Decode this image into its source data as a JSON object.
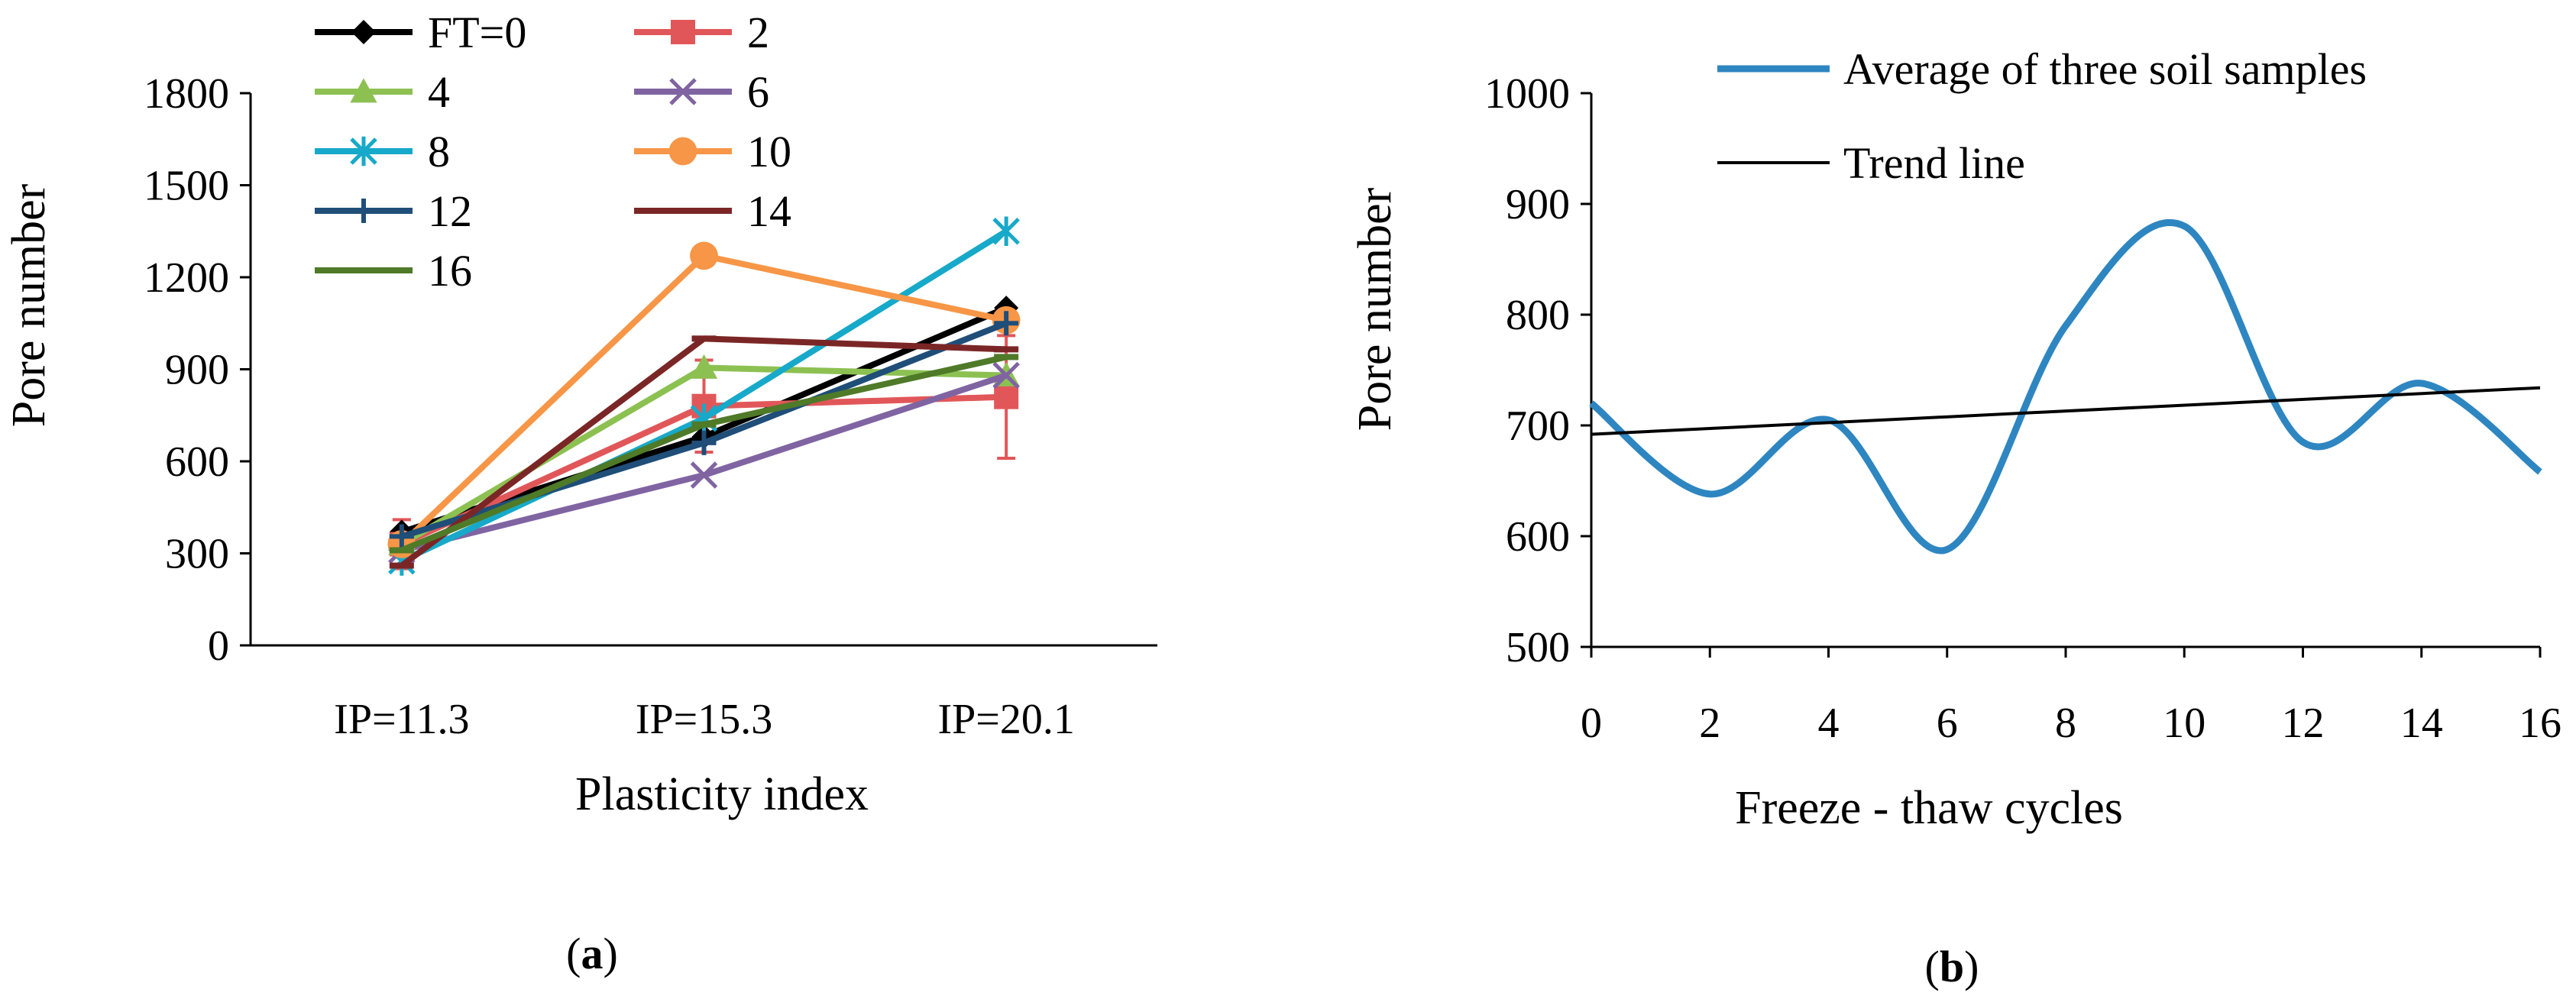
{
  "chart_data": [
    {
      "id": "a",
      "type": "line",
      "panel_label_open": "(",
      "panel_label_letter": "a",
      "panel_label_close": ")",
      "title": "",
      "xlabel": "Plasticity index",
      "ylabel": "Pore number",
      "categories": [
        "IP=11.3",
        "IP=15.3",
        "IP=20.1"
      ],
      "ylim": [
        0,
        1800
      ],
      "yticks": [
        0,
        300,
        600,
        900,
        1200,
        1500,
        1800
      ],
      "grid": false,
      "legend": "top-left, two columns",
      "series": [
        {
          "name": "FT=0",
          "color": "#000000",
          "marker": "diamond",
          "values": [
            370,
            680,
            1100
          ]
        },
        {
          "name": "2",
          "color": "#e15759",
          "marker": "square",
          "values": [
            330,
            780,
            810
          ],
          "error_bars": [
            80,
            150,
            200
          ]
        },
        {
          "name": "4",
          "color": "#8cc152",
          "marker": "triangle",
          "values": [
            330,
            905,
            880
          ]
        },
        {
          "name": "6",
          "color": "#8064a2",
          "marker": "x",
          "values": [
            310,
            555,
            880
          ]
        },
        {
          "name": "8",
          "color": "#17a9c9",
          "marker": "star",
          "values": [
            275,
            740,
            1350
          ]
        },
        {
          "name": "10",
          "color": "#f79646",
          "marker": "circle",
          "values": [
            330,
            1270,
            1060
          ]
        },
        {
          "name": "12",
          "color": "#1f4e79",
          "marker": "plus",
          "values": [
            355,
            660,
            1050
          ]
        },
        {
          "name": "14",
          "color": "#7b2626",
          "marker": "dash",
          "values": [
            260,
            1000,
            965
          ]
        },
        {
          "name": "16",
          "color": "#4f7a28",
          "marker": "dash",
          "values": [
            310,
            720,
            940
          ]
        }
      ]
    },
    {
      "id": "b",
      "type": "line",
      "panel_label_open": "(",
      "panel_label_letter": "b",
      "panel_label_close": ")",
      "title": "",
      "xlabel": "Freeze - thaw cycles",
      "ylabel": "Pore number",
      "xlim": [
        0,
        16
      ],
      "xticks": [
        0,
        2,
        4,
        6,
        8,
        10,
        12,
        14,
        16
      ],
      "ylim": [
        500,
        1000
      ],
      "yticks": [
        500,
        600,
        700,
        800,
        900,
        1000
      ],
      "grid": false,
      "legend": "top-right",
      "series": [
        {
          "name": "Average of three soil samples",
          "color": "#2e86c1",
          "smooth": true,
          "x": [
            0,
            2,
            4,
            6,
            8,
            10,
            12,
            14,
            16
          ],
          "values": [
            720,
            638,
            705,
            588,
            790,
            880,
            685,
            738,
            658
          ]
        }
      ],
      "trend": {
        "name": "Trend line",
        "color": "#000000",
        "x": [
          0,
          16
        ],
        "values": [
          692,
          734
        ]
      }
    }
  ]
}
